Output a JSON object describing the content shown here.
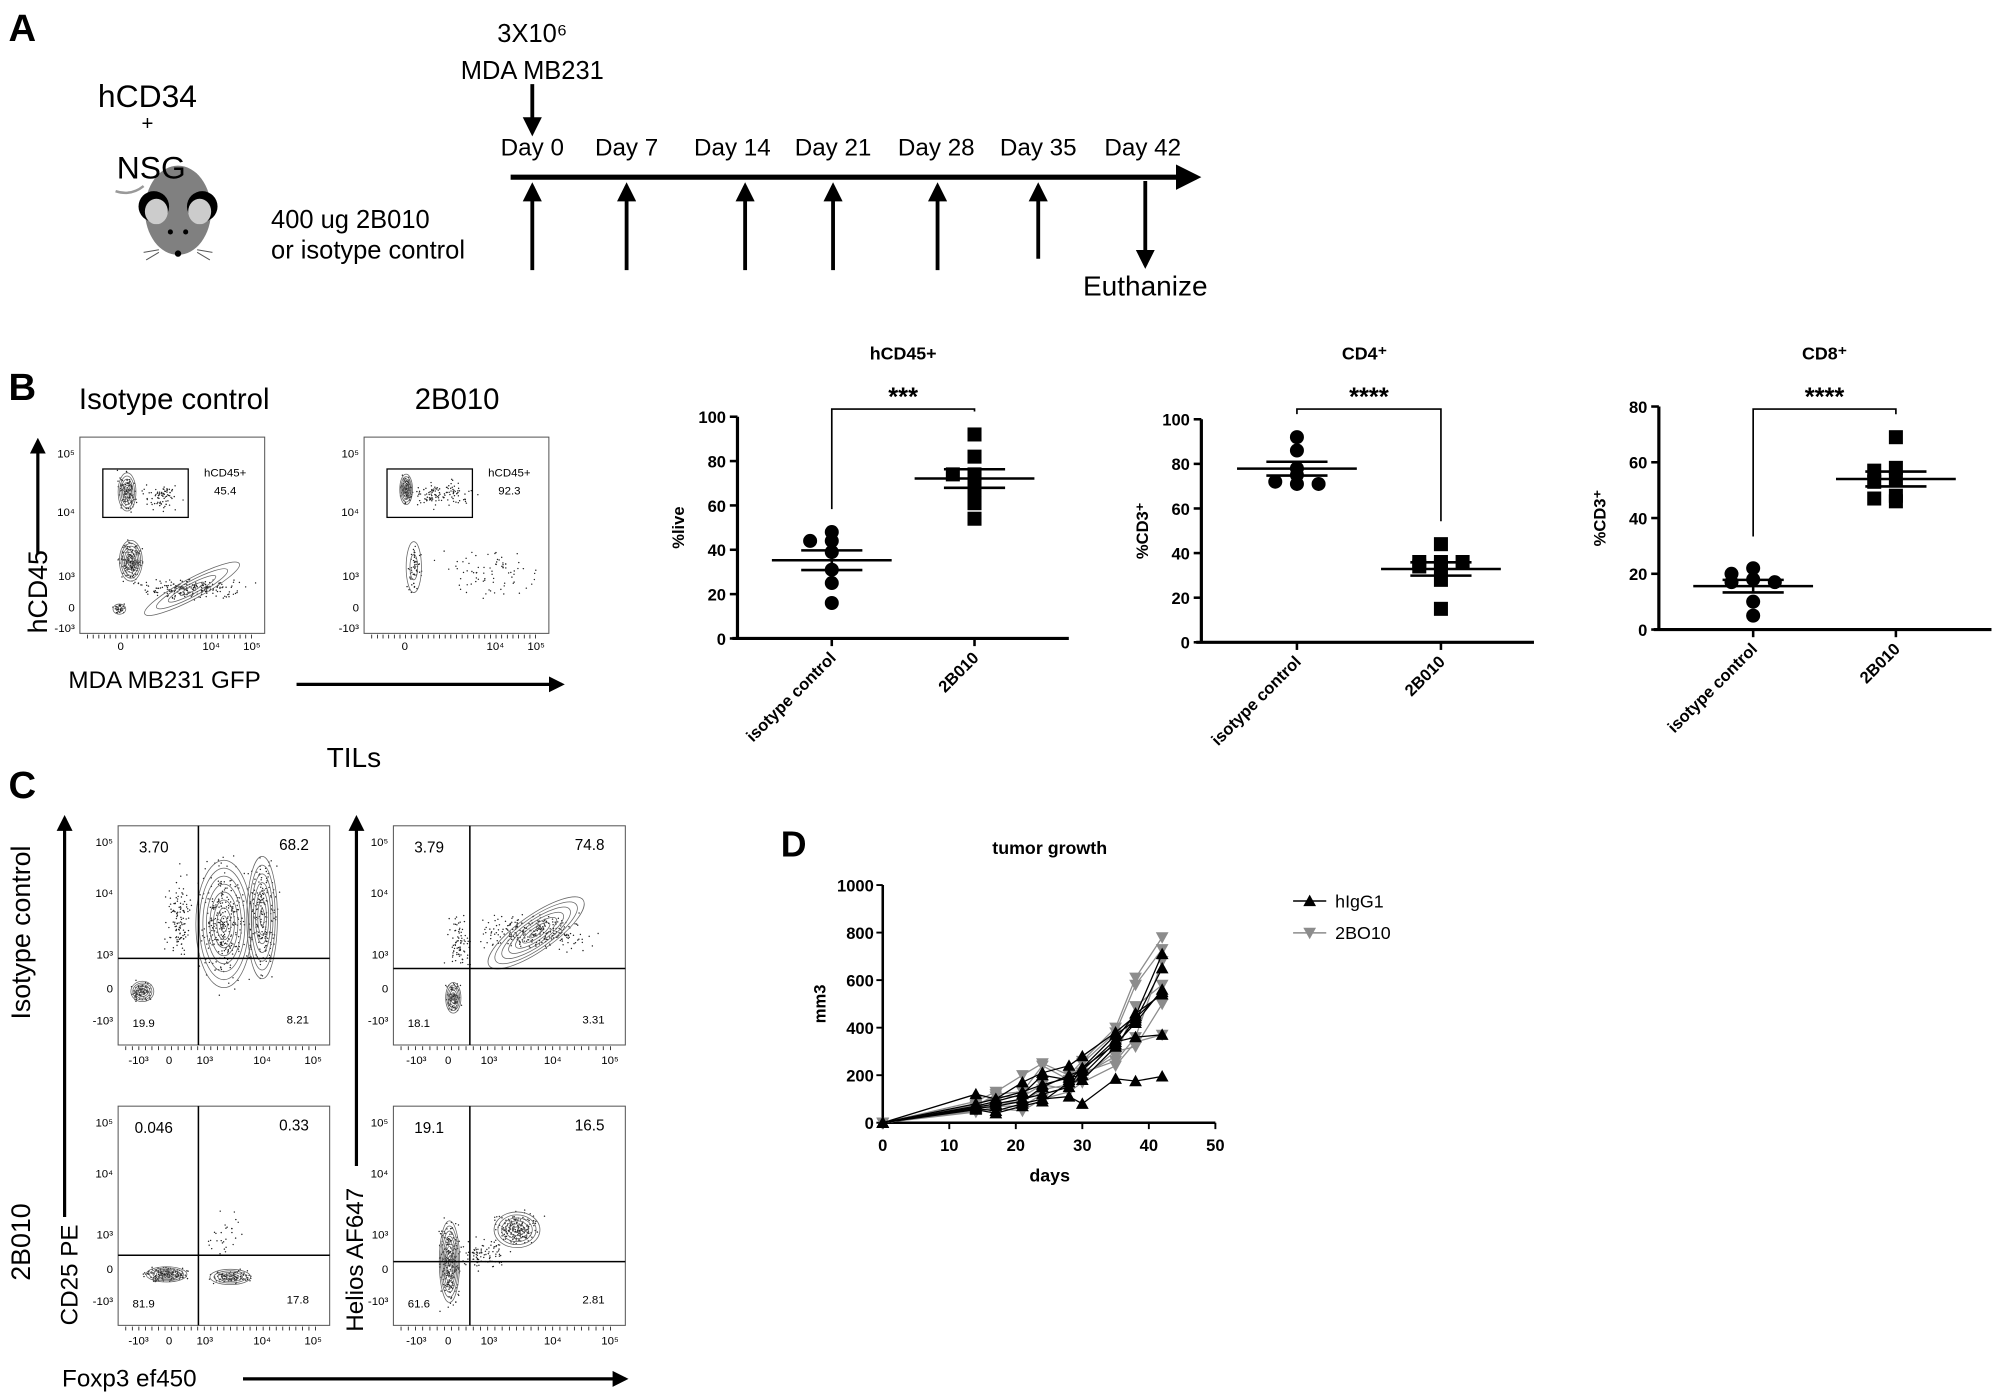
{
  "panel_labels": {
    "a": "A",
    "b": "B",
    "c": "C",
    "d": "D"
  },
  "panel_a": {
    "mouse_line1": "hCD34",
    "mouse_plus": "+",
    "mouse_line2": "NSG",
    "mouse_icon": "mouse-icon",
    "treatment_line1": "400 ug 2B010",
    "treatment_line2": "or isotype control",
    "injection_line1": "3X10⁶",
    "injection_line2": "MDA MB231",
    "days": [
      "Day 0",
      "Day 7",
      "Day 14",
      "Day 21",
      "Day 28",
      "Day 35",
      "Day 42"
    ],
    "endpoint": "Euthanize"
  },
  "panel_b_flow": {
    "columns": [
      "Isotype control",
      "2B010"
    ],
    "y_label": "hCD45",
    "x_label": "MDA MB231 GFP",
    "y_ticks": [
      "10⁵",
      "10⁴",
      "10³",
      "0",
      "-10³"
    ],
    "x_ticks": [
      "0",
      "10⁴",
      "10⁵"
    ],
    "gates": [
      {
        "name": "hCD45+",
        "value": "45.4"
      },
      {
        "name": "hCD45+",
        "value": "92.3"
      }
    ]
  },
  "panel_c": {
    "title": "TILs",
    "row_labels": [
      "Isotype control",
      "2B010"
    ],
    "y_label_left": "CD25 PE",
    "y_label_right": "Helios  AF647",
    "x_label": "Foxp3 ef450",
    "y_ticks": [
      "10⁵",
      "10⁴",
      "10³",
      "0",
      "-10³"
    ],
    "x_ticks": [
      "-10³",
      "0",
      "10³",
      "10⁴",
      "10⁵"
    ],
    "plots": [
      {
        "ul": "3.70",
        "ur": "68.2",
        "ll": "19.9",
        "lr": "8.21"
      },
      {
        "ul": "3.79",
        "ur": "74.8",
        "ll": "18.1",
        "lr": "3.31"
      },
      {
        "ul": "0.046",
        "ur": "0.33",
        "ll": "81.9",
        "lr": "17.8"
      },
      {
        "ul": "19.1",
        "ur": "16.5",
        "ll": "61.6",
        "lr": "2.81"
      }
    ]
  },
  "chart_data": [
    {
      "type": "scatter",
      "title": "hCD45+",
      "ylabel": "%live",
      "ylim": [
        0,
        100
      ],
      "yticks": [
        0,
        20,
        40,
        60,
        80,
        100
      ],
      "categories": [
        "isotype control",
        "2B010"
      ],
      "significance": "***",
      "series": [
        {
          "values": [
            48,
            44,
            44,
            39,
            31,
            25,
            16
          ],
          "marker": "circle"
        },
        {
          "values": [
            92,
            82,
            74,
            74,
            73,
            67,
            61,
            54
          ],
          "marker": "square"
        }
      ],
      "error_bars": "mean ± SEM"
    },
    {
      "type": "scatter",
      "title": "CD4⁺",
      "ylabel": "%CD3⁺",
      "ylim": [
        0,
        100
      ],
      "yticks": [
        0,
        20,
        40,
        60,
        80,
        100
      ],
      "categories": [
        "isotype control",
        "2B010"
      ],
      "significance": "****",
      "series": [
        {
          "values": [
            92,
            86,
            78,
            75,
            71,
            72,
            71
          ],
          "marker": "circle"
        },
        {
          "values": [
            44,
            36,
            36,
            36,
            34,
            34,
            28,
            15
          ],
          "marker": "square"
        }
      ],
      "error_bars": "mean ± SEM"
    },
    {
      "type": "scatter",
      "title": "CD8⁺",
      "ylabel": "%CD3⁺",
      "ylim": [
        0,
        80
      ],
      "yticks": [
        0,
        20,
        40,
        60,
        80
      ],
      "categories": [
        "isotype control",
        "2B010"
      ],
      "significance": "****",
      "series": [
        {
          "values": [
            22,
            20,
            18,
            17,
            17,
            10,
            5
          ],
          "marker": "circle"
        },
        {
          "values": [
            69,
            58,
            57,
            54,
            53,
            48,
            46,
            47
          ],
          "marker": "square"
        }
      ],
      "error_bars": "mean ± SEM"
    },
    {
      "type": "line",
      "title": "tumor growth",
      "xlabel": "days",
      "ylabel": "mm3",
      "xlim": [
        0,
        50
      ],
      "ylim": [
        0,
        1000
      ],
      "xticks": [
        0,
        10,
        20,
        30,
        40,
        50
      ],
      "yticks": [
        0,
        200,
        400,
        600,
        800,
        1000
      ],
      "legend_position": "right",
      "x": [
        0,
        14,
        17,
        21,
        24,
        28,
        30,
        35,
        38,
        42
      ],
      "series": [
        {
          "name": "hIgG1",
          "color": "#000000",
          "marker": "triangle-up",
          "individuals": [
            [
              0,
              120,
              100,
              170,
              210,
              240,
              280,
              380,
              450,
              710
            ],
            [
              0,
              70,
              90,
              120,
              200,
              180,
              230,
              370,
              430,
              650
            ],
            [
              0,
              60,
              50,
              80,
              100,
              110,
              80,
              185,
              175,
              195
            ],
            [
              0,
              80,
              100,
              130,
              160,
              190,
              200,
              340,
              360,
              370
            ],
            [
              0,
              55,
              40,
              70,
              90,
              170,
              180,
              320,
              440,
              550
            ],
            [
              0,
              65,
              80,
              100,
              120,
              150,
              230,
              330,
              420,
              560
            ],
            [
              0,
              60,
              70,
              90,
              150,
              200,
              220,
              350,
              460,
              540
            ]
          ]
        },
        {
          "name": "2BO10",
          "color": "#8c8c8c",
          "marker": "triangle-down",
          "individuals": [
            [
              0,
              90,
              130,
              200,
              250,
              200,
              260,
              400,
              610,
              780
            ],
            [
              0,
              70,
              120,
              130,
              240,
              180,
              250,
              380,
              580,
              730
            ],
            [
              0,
              50,
              60,
              50,
              100,
              130,
              170,
              240,
              340,
              370
            ],
            [
              0,
              60,
              80,
              90,
              140,
              160,
              200,
              280,
              490,
              580
            ],
            [
              0,
              45,
              70,
              70,
              120,
              150,
              190,
              300,
              320,
              500
            ],
            [
              0,
              75,
              110,
              110,
              160,
              140,
              210,
              260,
              360,
              680
            ]
          ]
        }
      ]
    }
  ]
}
